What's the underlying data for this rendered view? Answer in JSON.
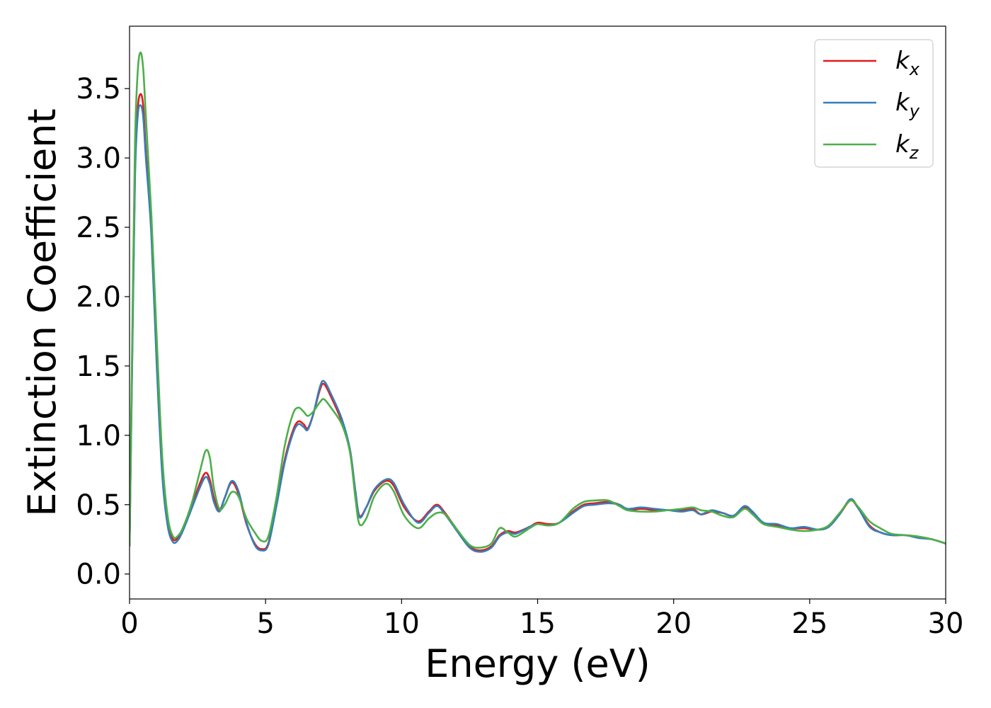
{
  "chart_data": {
    "type": "line",
    "xlabel": "Energy (eV)",
    "ylabel": "Extinction Coefficient",
    "xlim": [
      0,
      30
    ],
    "ylim": [
      -0.18,
      3.95
    ],
    "xticks": [
      0,
      5,
      10,
      15,
      20,
      25,
      30
    ],
    "xtick_labels": [
      "0",
      "5",
      "10",
      "15",
      "20",
      "25",
      "30"
    ],
    "yticks": [
      0.0,
      0.5,
      1.0,
      1.5,
      2.0,
      2.5,
      3.0,
      3.5
    ],
    "ytick_labels": [
      "0.0",
      "0.5",
      "1.0",
      "1.5",
      "2.0",
      "2.5",
      "3.0",
      "3.5"
    ],
    "grid": false,
    "legend_position": "top-right",
    "series": [
      {
        "name": "k",
        "subscript": "x",
        "color": "#e41a1c",
        "points": [
          [
            0,
            0.2
          ],
          [
            0.1,
            1.6
          ],
          [
            0.2,
            2.9
          ],
          [
            0.3,
            3.35
          ],
          [
            0.4,
            3.46
          ],
          [
            0.5,
            3.38
          ],
          [
            0.6,
            3.05
          ],
          [
            0.8,
            2.5
          ],
          [
            1.0,
            1.55
          ],
          [
            1.2,
            0.75
          ],
          [
            1.4,
            0.38
          ],
          [
            1.6,
            0.25
          ],
          [
            1.8,
            0.27
          ],
          [
            2.0,
            0.35
          ],
          [
            2.3,
            0.5
          ],
          [
            2.6,
            0.66
          ],
          [
            2.8,
            0.73
          ],
          [
            2.95,
            0.68
          ],
          [
            3.1,
            0.55
          ],
          [
            3.3,
            0.46
          ],
          [
            3.5,
            0.55
          ],
          [
            3.75,
            0.66
          ],
          [
            4.0,
            0.58
          ],
          [
            4.3,
            0.36
          ],
          [
            4.6,
            0.22
          ],
          [
            4.85,
            0.18
          ],
          [
            5.1,
            0.22
          ],
          [
            5.4,
            0.5
          ],
          [
            5.7,
            0.82
          ],
          [
            6.0,
            1.03
          ],
          [
            6.2,
            1.1
          ],
          [
            6.4,
            1.08
          ],
          [
            6.55,
            1.05
          ],
          [
            6.75,
            1.15
          ],
          [
            7.0,
            1.33
          ],
          [
            7.15,
            1.37
          ],
          [
            7.4,
            1.28
          ],
          [
            7.8,
            1.1
          ],
          [
            8.1,
            0.9
          ],
          [
            8.3,
            0.6
          ],
          [
            8.45,
            0.42
          ],
          [
            8.7,
            0.48
          ],
          [
            9.0,
            0.6
          ],
          [
            9.4,
            0.67
          ],
          [
            9.7,
            0.64
          ],
          [
            10.1,
            0.48
          ],
          [
            10.6,
            0.38
          ],
          [
            11.0,
            0.45
          ],
          [
            11.3,
            0.5
          ],
          [
            11.6,
            0.44
          ],
          [
            12.0,
            0.33
          ],
          [
            12.5,
            0.2
          ],
          [
            12.9,
            0.17
          ],
          [
            13.3,
            0.2
          ],
          [
            13.6,
            0.28
          ],
          [
            13.9,
            0.31
          ],
          [
            14.2,
            0.3
          ],
          [
            14.7,
            0.34
          ],
          [
            15.0,
            0.37
          ],
          [
            15.4,
            0.36
          ],
          [
            15.8,
            0.37
          ],
          [
            16.3,
            0.45
          ],
          [
            16.7,
            0.5
          ],
          [
            17.1,
            0.51
          ],
          [
            17.6,
            0.52
          ],
          [
            18.0,
            0.5
          ],
          [
            18.3,
            0.46
          ],
          [
            18.8,
            0.47
          ],
          [
            19.3,
            0.46
          ],
          [
            19.8,
            0.46
          ],
          [
            20.3,
            0.46
          ],
          [
            20.7,
            0.47
          ],
          [
            21.0,
            0.43
          ],
          [
            21.4,
            0.45
          ],
          [
            21.8,
            0.44
          ],
          [
            22.2,
            0.42
          ],
          [
            22.6,
            0.48
          ],
          [
            22.9,
            0.44
          ],
          [
            23.3,
            0.37
          ],
          [
            23.8,
            0.35
          ],
          [
            24.3,
            0.33
          ],
          [
            24.8,
            0.33
          ],
          [
            25.3,
            0.32
          ],
          [
            25.7,
            0.34
          ],
          [
            26.1,
            0.43
          ],
          [
            26.5,
            0.53
          ],
          [
            26.8,
            0.47
          ],
          [
            27.2,
            0.35
          ],
          [
            27.6,
            0.3
          ],
          [
            28.0,
            0.28
          ],
          [
            28.5,
            0.28
          ],
          [
            29.0,
            0.27
          ],
          [
            29.5,
            0.25
          ],
          [
            30.0,
            0.22
          ]
        ]
      },
      {
        "name": "k",
        "subscript": "y",
        "color": "#377eb8",
        "points": [
          [
            0,
            0.2
          ],
          [
            0.1,
            1.55
          ],
          [
            0.2,
            2.85
          ],
          [
            0.3,
            3.3
          ],
          [
            0.4,
            3.38
          ],
          [
            0.5,
            3.3
          ],
          [
            0.6,
            3.0
          ],
          [
            0.8,
            2.45
          ],
          [
            1.0,
            1.5
          ],
          [
            1.2,
            0.72
          ],
          [
            1.4,
            0.35
          ],
          [
            1.6,
            0.23
          ],
          [
            1.8,
            0.25
          ],
          [
            2.0,
            0.33
          ],
          [
            2.3,
            0.48
          ],
          [
            2.6,
            0.63
          ],
          [
            2.8,
            0.7
          ],
          [
            2.95,
            0.65
          ],
          [
            3.1,
            0.52
          ],
          [
            3.3,
            0.45
          ],
          [
            3.5,
            0.55
          ],
          [
            3.75,
            0.67
          ],
          [
            4.0,
            0.6
          ],
          [
            4.3,
            0.37
          ],
          [
            4.6,
            0.21
          ],
          [
            4.85,
            0.17
          ],
          [
            5.1,
            0.21
          ],
          [
            5.4,
            0.49
          ],
          [
            5.7,
            0.8
          ],
          [
            6.0,
            1.01
          ],
          [
            6.2,
            1.08
          ],
          [
            6.4,
            1.06
          ],
          [
            6.55,
            1.04
          ],
          [
            6.75,
            1.15
          ],
          [
            7.0,
            1.35
          ],
          [
            7.15,
            1.39
          ],
          [
            7.4,
            1.3
          ],
          [
            7.8,
            1.12
          ],
          [
            8.1,
            0.9
          ],
          [
            8.3,
            0.6
          ],
          [
            8.45,
            0.41
          ],
          [
            8.7,
            0.48
          ],
          [
            9.0,
            0.61
          ],
          [
            9.4,
            0.68
          ],
          [
            9.7,
            0.66
          ],
          [
            10.1,
            0.5
          ],
          [
            10.6,
            0.37
          ],
          [
            11.0,
            0.44
          ],
          [
            11.3,
            0.49
          ],
          [
            11.6,
            0.43
          ],
          [
            12.0,
            0.32
          ],
          [
            12.5,
            0.19
          ],
          [
            12.9,
            0.16
          ],
          [
            13.3,
            0.19
          ],
          [
            13.6,
            0.27
          ],
          [
            13.9,
            0.3
          ],
          [
            14.2,
            0.29
          ],
          [
            14.7,
            0.34
          ],
          [
            15.0,
            0.36
          ],
          [
            15.4,
            0.35
          ],
          [
            15.8,
            0.37
          ],
          [
            16.3,
            0.44
          ],
          [
            16.7,
            0.49
          ],
          [
            17.1,
            0.5
          ],
          [
            17.6,
            0.51
          ],
          [
            18.0,
            0.5
          ],
          [
            18.3,
            0.47
          ],
          [
            18.8,
            0.48
          ],
          [
            19.3,
            0.47
          ],
          [
            19.8,
            0.46
          ],
          [
            20.3,
            0.45
          ],
          [
            20.7,
            0.46
          ],
          [
            21.0,
            0.43
          ],
          [
            21.4,
            0.46
          ],
          [
            21.8,
            0.44
          ],
          [
            22.2,
            0.42
          ],
          [
            22.6,
            0.49
          ],
          [
            22.9,
            0.45
          ],
          [
            23.3,
            0.37
          ],
          [
            23.8,
            0.36
          ],
          [
            24.3,
            0.33
          ],
          [
            24.8,
            0.34
          ],
          [
            25.3,
            0.32
          ],
          [
            25.7,
            0.34
          ],
          [
            26.1,
            0.43
          ],
          [
            26.5,
            0.54
          ],
          [
            26.8,
            0.47
          ],
          [
            27.2,
            0.34
          ],
          [
            27.6,
            0.3
          ],
          [
            28.0,
            0.28
          ],
          [
            28.5,
            0.28
          ],
          [
            29.0,
            0.26
          ],
          [
            29.5,
            0.25
          ],
          [
            30.0,
            0.22
          ]
        ]
      },
      {
        "name": "k",
        "subscript": "z",
        "color": "#4daf4a",
        "points": [
          [
            0,
            0.2
          ],
          [
            0.1,
            1.7
          ],
          [
            0.2,
            3.1
          ],
          [
            0.3,
            3.62
          ],
          [
            0.4,
            3.76
          ],
          [
            0.5,
            3.65
          ],
          [
            0.6,
            3.3
          ],
          [
            0.8,
            2.6
          ],
          [
            1.0,
            1.7
          ],
          [
            1.2,
            0.85
          ],
          [
            1.4,
            0.42
          ],
          [
            1.6,
            0.27
          ],
          [
            1.8,
            0.28
          ],
          [
            2.0,
            0.35
          ],
          [
            2.3,
            0.52
          ],
          [
            2.6,
            0.75
          ],
          [
            2.8,
            0.89
          ],
          [
            2.95,
            0.84
          ],
          [
            3.1,
            0.62
          ],
          [
            3.3,
            0.47
          ],
          [
            3.5,
            0.5
          ],
          [
            3.75,
            0.59
          ],
          [
            4.0,
            0.56
          ],
          [
            4.3,
            0.4
          ],
          [
            4.6,
            0.3
          ],
          [
            4.85,
            0.24
          ],
          [
            5.1,
            0.27
          ],
          [
            5.4,
            0.55
          ],
          [
            5.7,
            0.92
          ],
          [
            6.0,
            1.15
          ],
          [
            6.2,
            1.2
          ],
          [
            6.4,
            1.17
          ],
          [
            6.55,
            1.14
          ],
          [
            6.75,
            1.17
          ],
          [
            7.0,
            1.24
          ],
          [
            7.15,
            1.26
          ],
          [
            7.4,
            1.2
          ],
          [
            7.8,
            1.08
          ],
          [
            8.1,
            0.88
          ],
          [
            8.3,
            0.55
          ],
          [
            8.45,
            0.36
          ],
          [
            8.7,
            0.4
          ],
          [
            9.0,
            0.56
          ],
          [
            9.4,
            0.65
          ],
          [
            9.7,
            0.6
          ],
          [
            10.1,
            0.42
          ],
          [
            10.6,
            0.33
          ],
          [
            11.0,
            0.4
          ],
          [
            11.3,
            0.44
          ],
          [
            11.6,
            0.43
          ],
          [
            12.0,
            0.33
          ],
          [
            12.5,
            0.21
          ],
          [
            12.9,
            0.19
          ],
          [
            13.3,
            0.22
          ],
          [
            13.6,
            0.33
          ],
          [
            13.9,
            0.3
          ],
          [
            14.2,
            0.27
          ],
          [
            14.7,
            0.33
          ],
          [
            15.0,
            0.36
          ],
          [
            15.4,
            0.35
          ],
          [
            15.8,
            0.37
          ],
          [
            16.3,
            0.47
          ],
          [
            16.7,
            0.52
          ],
          [
            17.1,
            0.53
          ],
          [
            17.6,
            0.53
          ],
          [
            18.0,
            0.49
          ],
          [
            18.3,
            0.46
          ],
          [
            18.8,
            0.45
          ],
          [
            19.3,
            0.45
          ],
          [
            19.8,
            0.46
          ],
          [
            20.3,
            0.47
          ],
          [
            20.7,
            0.48
          ],
          [
            21.0,
            0.46
          ],
          [
            21.4,
            0.45
          ],
          [
            21.8,
            0.42
          ],
          [
            22.2,
            0.41
          ],
          [
            22.6,
            0.47
          ],
          [
            22.9,
            0.43
          ],
          [
            23.3,
            0.36
          ],
          [
            23.8,
            0.34
          ],
          [
            24.3,
            0.32
          ],
          [
            24.8,
            0.31
          ],
          [
            25.3,
            0.32
          ],
          [
            25.7,
            0.35
          ],
          [
            26.1,
            0.44
          ],
          [
            26.5,
            0.53
          ],
          [
            26.8,
            0.48
          ],
          [
            27.2,
            0.38
          ],
          [
            27.6,
            0.33
          ],
          [
            28.0,
            0.29
          ],
          [
            28.5,
            0.28
          ],
          [
            29.0,
            0.27
          ],
          [
            29.5,
            0.25
          ],
          [
            30.0,
            0.22
          ]
        ]
      }
    ]
  }
}
